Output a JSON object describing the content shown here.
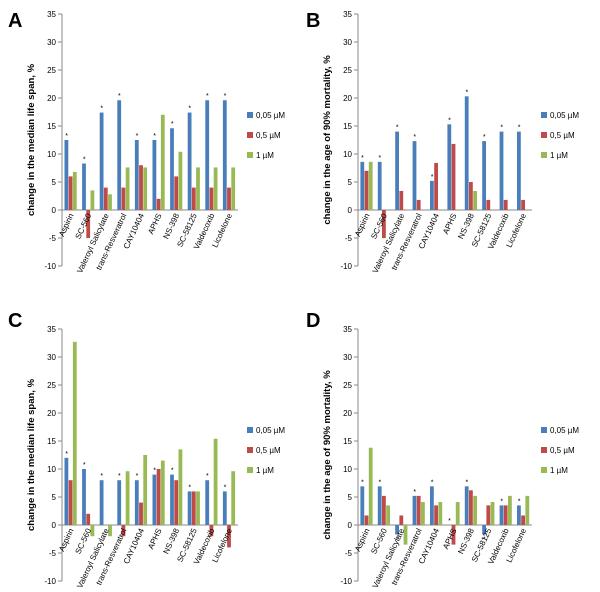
{
  "series_colors": [
    "#4a7ebb",
    "#be4b48",
    "#98b954"
  ],
  "chart_data": [
    {
      "type": "bar",
      "panel": "A",
      "ylabel": "change in the median life span, %",
      "ylim": [
        -10,
        35
      ],
      "ytick_step": 5,
      "grid": false,
      "legend_position": "right",
      "categories": [
        "Aspirin",
        "SC-560",
        "Valeroyl Salicylate",
        "trans-Resveratrol",
        "CAY10404",
        "APHS",
        "NS-398",
        "SC-58125",
        "Valdecoxib",
        "Licofelone"
      ],
      "series": [
        {
          "name": "0,05 µM",
          "values": [
            12.5,
            8.3,
            17.4,
            19.6,
            12.5,
            12.5,
            14.6,
            17.4,
            19.6,
            19.6
          ]
        },
        {
          "name": "0,5 µM",
          "values": [
            6.0,
            -5.0,
            4.0,
            4.0,
            8.0,
            2.0,
            6.0,
            4.0,
            4.0,
            4.0
          ]
        },
        {
          "name": "1 µM",
          "values": [
            6.8,
            3.5,
            2.8,
            7.6,
            7.6,
            17.0,
            10.4,
            7.6,
            7.6,
            7.6
          ]
        }
      ],
      "markers": [
        [
          "*",
          "",
          ""
        ],
        [
          "*",
          "",
          ""
        ],
        [
          "*",
          "",
          ""
        ],
        [
          "*",
          "",
          ""
        ],
        [
          "*",
          "",
          ""
        ],
        [
          "*",
          "",
          ""
        ],
        [
          "*",
          "",
          ""
        ],
        [
          "*",
          "",
          ""
        ],
        [
          "*",
          "",
          ""
        ],
        [
          "*",
          "",
          ""
        ]
      ]
    },
    {
      "type": "bar",
      "panel": "B",
      "ylabel": "change in the age of 90% mortality, %",
      "ylim": [
        -10,
        35
      ],
      "ytick_step": 5,
      "grid": false,
      "legend_position": "right",
      "categories": [
        "Aspirin",
        "SC-560",
        "Valeroyl Salicylate",
        "trans-Resveratrol",
        "CAY10404",
        "APHS",
        "NS-398",
        "SC-58125",
        "Valdecoxib",
        "Licofelone"
      ],
      "series": [
        {
          "name": "0,05 µM",
          "values": [
            8.6,
            8.6,
            14.0,
            12.3,
            5.2,
            15.3,
            20.3,
            12.3,
            14.0,
            14.0
          ]
        },
        {
          "name": "0,5 µM",
          "values": [
            7.0,
            -5.0,
            3.4,
            1.8,
            8.4,
            11.8,
            5.0,
            1.8,
            1.8,
            1.8
          ]
        },
        {
          "name": "1 µM",
          "values": [
            8.6,
            0.0,
            0.0,
            0.0,
            0.0,
            0.0,
            3.4,
            0.0,
            0.0,
            0.0
          ]
        }
      ],
      "markers": [
        [
          "*",
          "",
          ""
        ],
        [
          "*",
          "",
          ""
        ],
        [
          "*",
          "",
          ""
        ],
        [
          "*",
          "",
          ""
        ],
        [
          "*",
          "",
          ""
        ],
        [
          "*",
          "",
          ""
        ],
        [
          "*",
          "",
          ""
        ],
        [
          "*",
          "",
          ""
        ],
        [
          "*",
          "",
          ""
        ],
        [
          "*",
          "",
          ""
        ]
      ]
    },
    {
      "type": "bar",
      "panel": "C",
      "ylabel": "change in the median life span, %",
      "ylim": [
        -10,
        35
      ],
      "ytick_step": 5,
      "grid": false,
      "legend_position": "right",
      "categories": [
        "Aspirin",
        "SC-560",
        "Valeroyl Salicylate",
        "trans-Resveratrol",
        "CAY10404",
        "APHS",
        "NS-398",
        "SC-58125",
        "Valdecoxib",
        "Licofelone"
      ],
      "series": [
        {
          "name": "0,05 µM",
          "values": [
            12.0,
            10.0,
            8.0,
            8.0,
            8.0,
            9.0,
            9.0,
            6.0,
            8.0,
            6.0
          ]
        },
        {
          "name": "0,5 µM",
          "values": [
            8.0,
            2.0,
            0.0,
            -2.0,
            4.0,
            10.0,
            8.0,
            6.0,
            -2.0,
            -4.0
          ]
        },
        {
          "name": "1 µM",
          "values": [
            32.7,
            -2.0,
            -2.0,
            9.6,
            12.5,
            11.5,
            13.5,
            6.0,
            15.4,
            9.6
          ]
        }
      ],
      "markers": [
        [
          "*",
          "",
          ""
        ],
        [
          "*",
          "",
          ""
        ],
        [
          "*",
          "",
          ""
        ],
        [
          "*",
          "",
          ""
        ],
        [
          "*",
          "",
          ""
        ],
        [
          "*",
          "",
          ""
        ],
        [
          "*",
          "",
          ""
        ],
        [
          "*",
          "",
          ""
        ],
        [
          "*",
          "",
          ""
        ],
        [
          "*",
          "",
          ""
        ]
      ]
    },
    {
      "type": "bar",
      "panel": "D",
      "ylabel": "change in the age of 90% mortality, %",
      "ylim": [
        -10,
        35
      ],
      "ytick_step": 5,
      "grid": false,
      "legend_position": "right",
      "categories": [
        "Aspirin",
        "SC-560",
        "Valeroyl Salicylate",
        "trans-Resveratrol",
        "CAY10404",
        "APHS",
        "NS-398",
        "SC-58125",
        "Valdecoxib",
        "Licofelone"
      ],
      "series": [
        {
          "name": "0,05 µM",
          "values": [
            6.9,
            6.9,
            -1.7,
            5.2,
            6.9,
            0.0,
            6.9,
            -1.7,
            3.5,
            3.5
          ]
        },
        {
          "name": "0,5 µM",
          "values": [
            1.7,
            5.2,
            1.7,
            5.2,
            3.5,
            -3.5,
            6.2,
            3.5,
            3.5,
            1.7
          ]
        },
        {
          "name": "1 µM",
          "values": [
            13.8,
            3.5,
            -3.5,
            4.1,
            4.1,
            4.1,
            5.2,
            4.1,
            5.2,
            5.2
          ]
        }
      ],
      "markers": [
        [
          "*",
          "",
          ""
        ],
        [
          "*",
          "",
          ""
        ],
        [
          "*",
          "",
          ""
        ],
        [
          "*",
          "",
          ""
        ],
        [
          "*",
          "",
          ""
        ],
        [
          "*",
          "",
          ""
        ],
        [
          "*",
          "",
          ""
        ],
        [
          "*",
          "",
          ""
        ],
        [
          "*",
          "",
          ""
        ],
        [
          "*",
          "",
          ""
        ]
      ]
    }
  ]
}
